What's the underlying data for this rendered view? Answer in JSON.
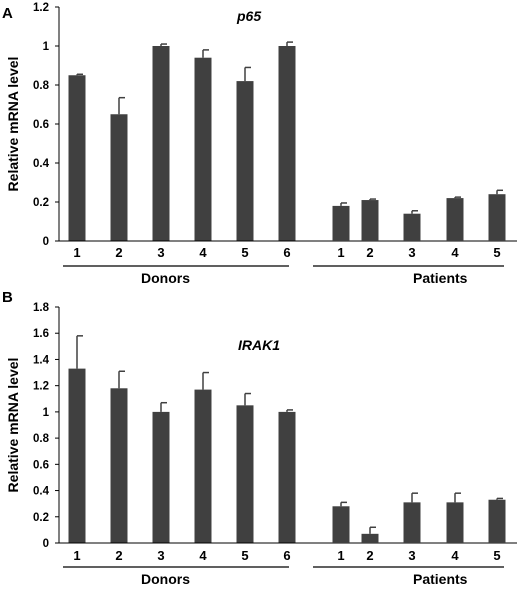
{
  "chart_data": [
    {
      "type": "bar",
      "panel": "A",
      "title": "p65",
      "ylabel": "Relative mRNA level",
      "ylim": [
        0,
        1.2
      ],
      "yticks": [
        "0",
        "0.2",
        "0.4",
        "0.6",
        "0.8",
        "1",
        "1.2"
      ],
      "groups": [
        {
          "label": "Donors",
          "categories": [
            "1",
            "2",
            "3",
            "4",
            "5",
            "6"
          ],
          "values": [
            0.85,
            0.65,
            1.0,
            0.94,
            0.82,
            1.0
          ],
          "errors": [
            0.005,
            0.085,
            0.01,
            0.04,
            0.07,
            0.02
          ]
        },
        {
          "label": "Patients",
          "categories": [
            "1",
            "2",
            "3",
            "4",
            "5"
          ],
          "values": [
            0.18,
            0.21,
            0.14,
            0.22,
            0.24
          ],
          "errors": [
            0.015,
            0.005,
            0.015,
            0.005,
            0.02
          ]
        }
      ],
      "bar_color": "#404040"
    },
    {
      "type": "bar",
      "panel": "B",
      "title": "IRAK1",
      "ylabel": "Relative mRNA level",
      "ylim": [
        0,
        1.8
      ],
      "yticks": [
        "0",
        "0.2",
        "0.4",
        "0.6",
        "0.8",
        "1",
        "1.2",
        "1.4",
        "1.6",
        "1.8"
      ],
      "groups": [
        {
          "label": "Donors",
          "categories": [
            "1",
            "2",
            "3",
            "4",
            "5",
            "6"
          ],
          "values": [
            1.33,
            1.18,
            1.0,
            1.17,
            1.05,
            1.0
          ],
          "errors": [
            0.25,
            0.13,
            0.07,
            0.13,
            0.09,
            0.015
          ]
        },
        {
          "label": "Patients",
          "categories": [
            "1",
            "2",
            "3",
            "4",
            "5"
          ],
          "values": [
            0.28,
            0.07,
            0.31,
            0.31,
            0.33
          ],
          "errors": [
            0.03,
            0.05,
            0.07,
            0.07,
            0.01
          ]
        }
      ],
      "bar_color": "#404040"
    }
  ]
}
